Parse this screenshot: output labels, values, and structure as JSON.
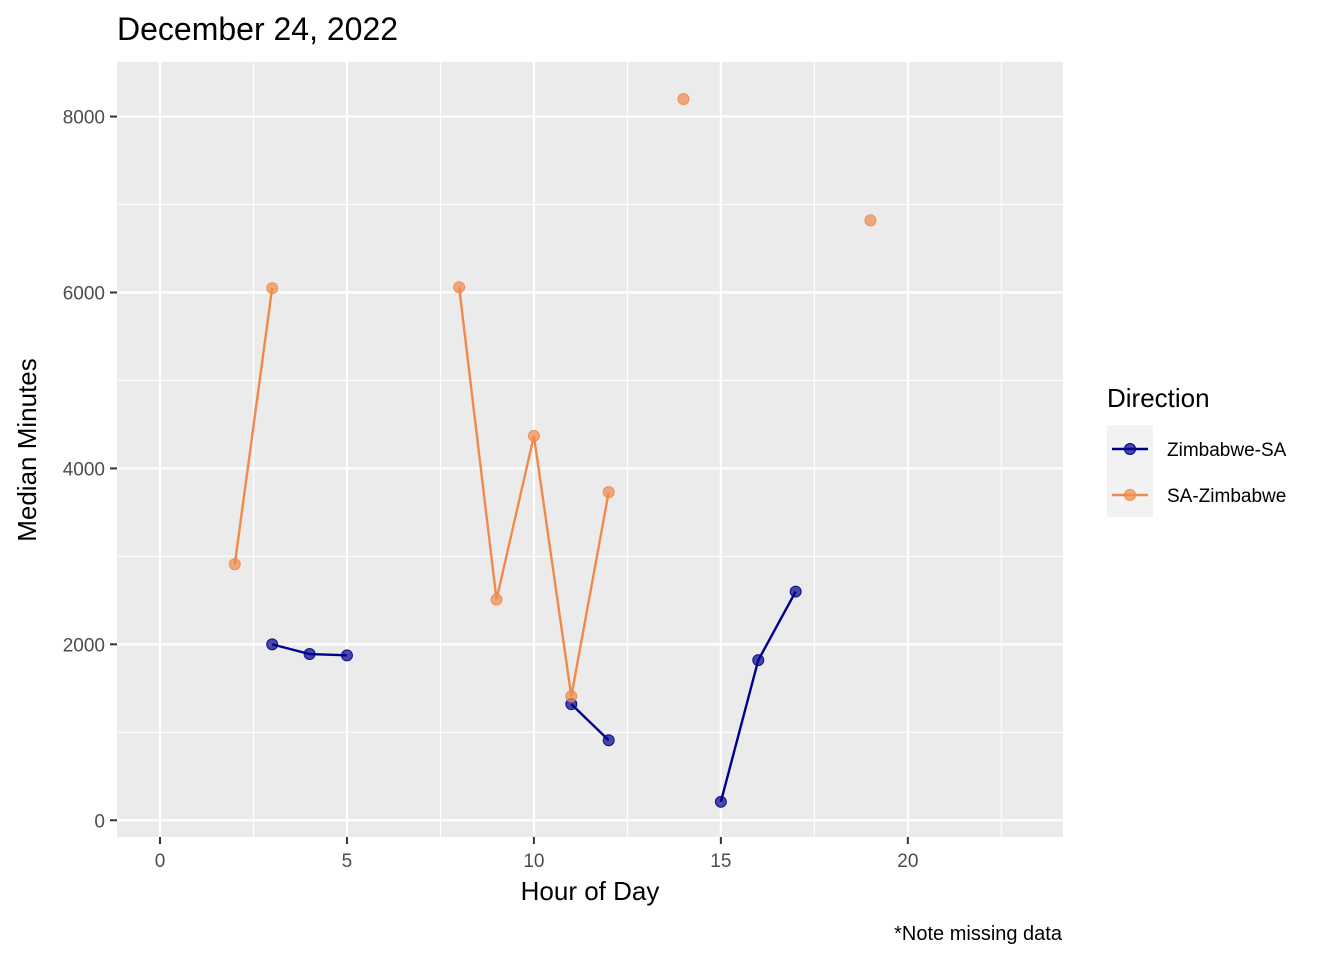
{
  "chart_data": {
    "type": "line",
    "title": "December 24, 2022",
    "xlabel": "Hour of Day",
    "ylabel": "Median Minutes",
    "caption": "*Note missing data",
    "xlim": [
      -1.15,
      24.15
    ],
    "ylim": [
      -190,
      8620
    ],
    "x_ticks": [
      0,
      5,
      10,
      15,
      20
    ],
    "y_ticks": [
      0,
      2000,
      4000,
      6000,
      8000
    ],
    "grid": true,
    "legend": {
      "title": "Direction",
      "placement": "right"
    },
    "series": [
      {
        "name": "Zimbabwe-SA",
        "color": "#00008B",
        "segments": [
          [
            {
              "x": 3,
              "y": 2000
            },
            {
              "x": 4,
              "y": 1890
            },
            {
              "x": 5,
              "y": 1875
            }
          ],
          [
            {
              "x": 11,
              "y": 1320
            },
            {
              "x": 12,
              "y": 910
            }
          ],
          [
            {
              "x": 15,
              "y": 210
            },
            {
              "x": 16,
              "y": 1820
            },
            {
              "x": 17,
              "y": 2600
            }
          ]
        ]
      },
      {
        "name": "SA-Zimbabwe",
        "color": "#F08A4B",
        "segments": [
          [
            {
              "x": 2,
              "y": 2910
            },
            {
              "x": 3,
              "y": 6050
            }
          ],
          [
            {
              "x": 8,
              "y": 6060
            },
            {
              "x": 9,
              "y": 2510
            },
            {
              "x": 10,
              "y": 4370
            },
            {
              "x": 11,
              "y": 1410
            },
            {
              "x": 12,
              "y": 3730
            }
          ],
          [
            {
              "x": 14,
              "y": 8200
            }
          ],
          [
            {
              "x": 19,
              "y": 6820
            }
          ]
        ]
      }
    ]
  }
}
